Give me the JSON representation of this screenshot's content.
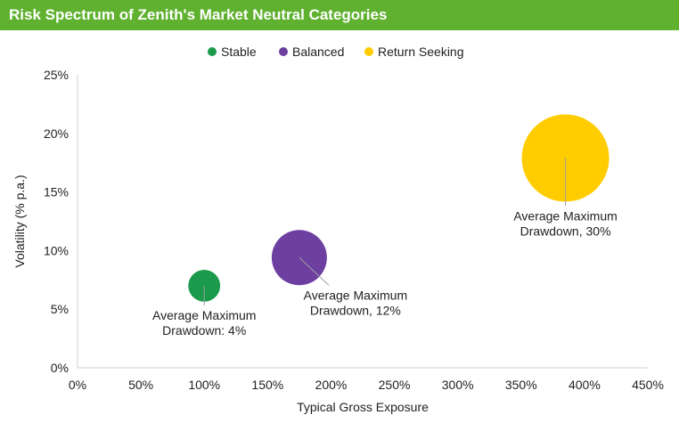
{
  "chart_data": {
    "type": "scatter",
    "title": "Risk Spectrum of Zenith's Market Neutral Categories",
    "xlabel": "Typical Gross Exposure",
    "ylabel": "Volatility (% p.a.)",
    "xlim": [
      0,
      450
    ],
    "ylim": [
      0,
      25
    ],
    "x_ticks": [
      "0%",
      "50%",
      "100%",
      "150%",
      "200%",
      "250%",
      "300%",
      "350%",
      "400%",
      "450%"
    ],
    "y_ticks": [
      "0%",
      "5%",
      "10%",
      "15%",
      "20%",
      "25%"
    ],
    "legend_position": "top",
    "grid": false,
    "series": [
      {
        "name": "Stable",
        "color": "#1a9a4a",
        "x": 100,
        "y": 7,
        "size": 4,
        "label_line1": "Average Maximum",
        "label_line2": "Drawdown: 4%"
      },
      {
        "name": "Balanced",
        "color": "#6c3fa0",
        "x": 175,
        "y": 9.4,
        "size": 12,
        "label_line1": "Average Maximum",
        "label_line2": "Drawdown, 12%"
      },
      {
        "name": "Return Seeking",
        "color": "#ffcc00",
        "x": 385,
        "y": 17.9,
        "size": 30,
        "label_line1": "Average Maximum",
        "label_line2": "Drawdown, 30%"
      }
    ]
  }
}
